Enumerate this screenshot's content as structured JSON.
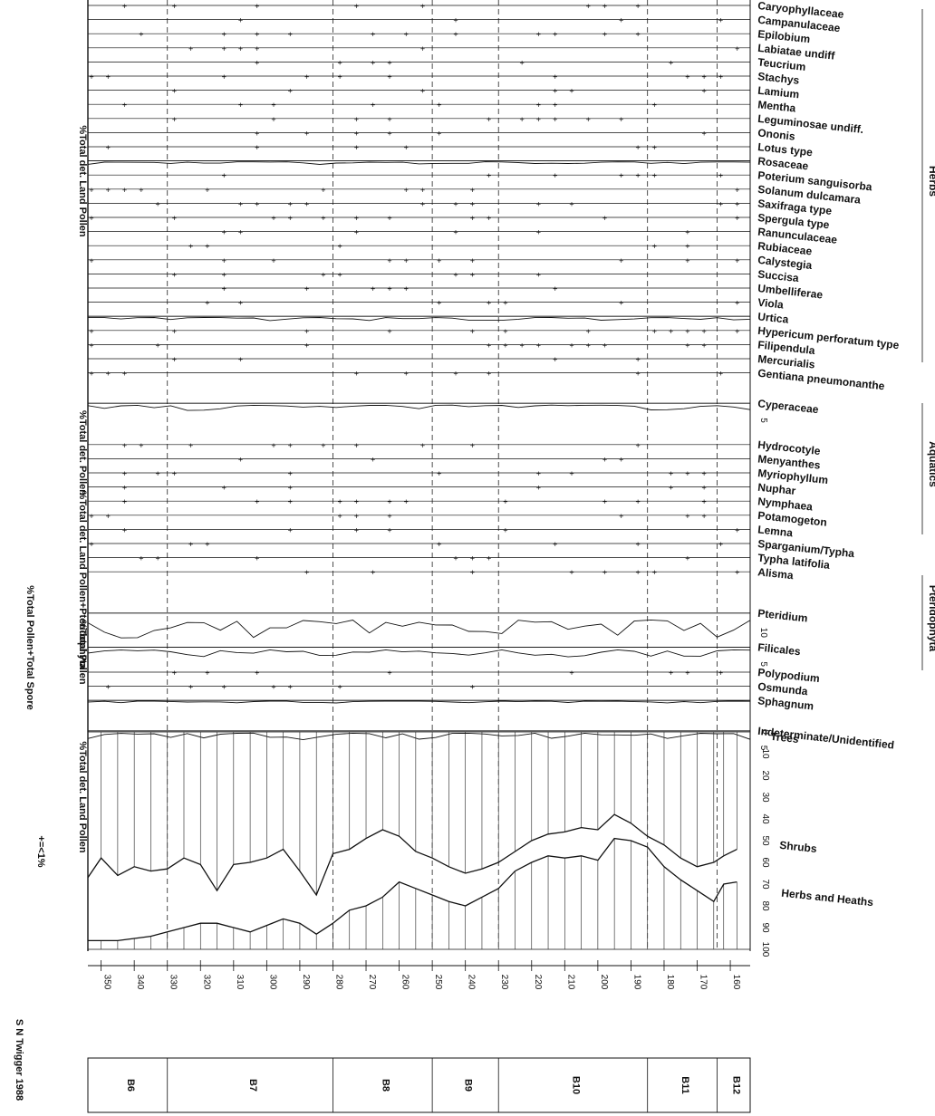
{
  "chart_data": {
    "type": "area",
    "orientation": "rotated-90",
    "depth_axis": {
      "ticks": [
        350,
        340,
        330,
        320,
        310,
        300,
        290,
        280,
        270,
        260,
        250,
        240,
        230,
        220,
        210,
        200,
        190,
        180,
        170,
        160
      ]
    },
    "zones": [
      "B6",
      "B7",
      "B8",
      "B9",
      "B10",
      "B11",
      "B12"
    ],
    "zone_bounds": [
      [
        354,
        330
      ],
      [
        330,
        280
      ],
      [
        280,
        250
      ],
      [
        250,
        230
      ],
      [
        230,
        185
      ],
      [
        185,
        164
      ],
      [
        164,
        154
      ]
    ],
    "taxa": {
      "herbs": [
        "Caryophyllaceae",
        "Campanulaceae",
        "Epilobium",
        "Labiatae undiff",
        "Teucrium",
        "Stachys",
        "Lamium",
        "Mentha",
        "Leguminosae undiff.",
        "Ononis",
        "Lotus type",
        "Rosaceae",
        "Poterium sanguisorba",
        "Solanum dulcamara",
        "Saxifraga type",
        "Spergula type",
        "Ranunculaceae",
        "Rubiaceae",
        "Calystegia",
        "Succisa",
        "Umbelliferae",
        "Viola",
        "Urtica",
        "Hypericum perforatum type",
        "Filipendula",
        "Mercurialis",
        "Gentiana pneumonanthe",
        "Cyperaceae"
      ],
      "aquatics": [
        "Hydrocotyle",
        "Menyanthes",
        "Myriophyllum",
        "Nuphar",
        "Nymphaea",
        "Potamogeton",
        "Lemna",
        "Sparganium/Typha",
        "Typha latifolia",
        "Alisma"
      ],
      "pteridophyta": [
        "Pteridium",
        "Filicales",
        "Polypodium",
        "Osmunda",
        "Sphagnum"
      ],
      "other": [
        "Indeterminate/Unidentified"
      ]
    },
    "groups": [
      "Herbs",
      "Aquatics",
      "Pteridophyta"
    ],
    "basis_labels": [
      "%Total det. Land Pollen",
      "%Total det. Pollen",
      "%Total det. Land Pollen+Pteridophyta",
      "%Total Pollen+Total Spore",
      "%Total Pollen",
      "%Total det. Land Pollen"
    ],
    "scale_ticks": {
      "cyperaceae": [
        "5"
      ],
      "pteridium": [
        "10"
      ],
      "filicales": [
        "5"
      ],
      "indeterminate": [
        "5"
      ],
      "summary": [
        "0",
        "10",
        "20",
        "30",
        "40",
        "50",
        "60",
        "70",
        "80",
        "90",
        "100"
      ]
    },
    "summary": {
      "depths": [
        354,
        350,
        345,
        340,
        335,
        330,
        325,
        320,
        315,
        310,
        305,
        300,
        295,
        290,
        285,
        280,
        275,
        270,
        265,
        260,
        255,
        250,
        245,
        240,
        235,
        230,
        225,
        220,
        215,
        210,
        205,
        200,
        195,
        190,
        185,
        180,
        175,
        170,
        165,
        162,
        158
      ],
      "trees": [
        67,
        58,
        66,
        62,
        64,
        63,
        58,
        61,
        73,
        61,
        60,
        58,
        54,
        64,
        75,
        56,
        54,
        49,
        45,
        48,
        55,
        58,
        62,
        65,
        63,
        60,
        55,
        50,
        47,
        46,
        44,
        45,
        38,
        42,
        48,
        52,
        58,
        62,
        60,
        57,
        54
      ],
      "trees_plus_shrubs": [
        96,
        96,
        96,
        95,
        94,
        92,
        90,
        88,
        88,
        90,
        92,
        89,
        86,
        88,
        93,
        88,
        82,
        80,
        76,
        69,
        72,
        75,
        78,
        80,
        76,
        72,
        64,
        60,
        57,
        58,
        57,
        59,
        49,
        50,
        53,
        62,
        68,
        73,
        78,
        70,
        69
      ],
      "series_labels": [
        "Trees",
        "Shrubs",
        "Herbs and Heaths"
      ]
    }
  },
  "texts": {
    "key": "+=<1%",
    "credit": "S N Twigger 1988"
  }
}
